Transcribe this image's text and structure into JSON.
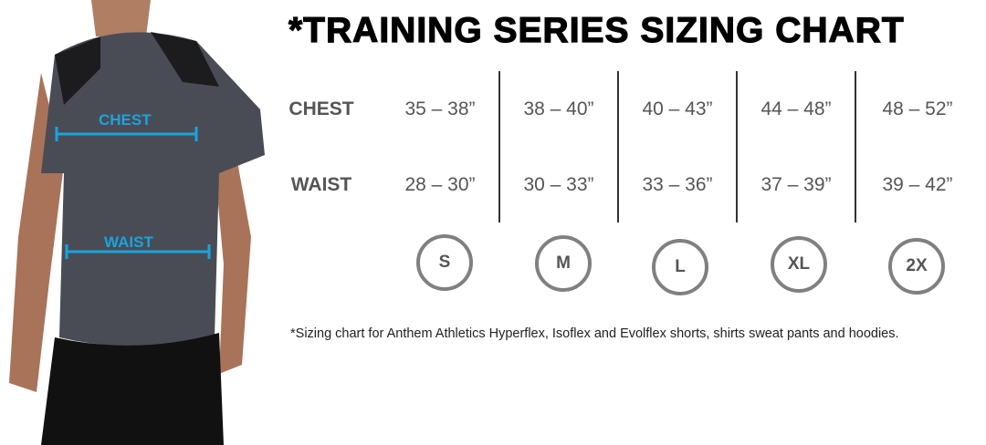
{
  "title": "*TRAINING SERIES SIZING CHART",
  "photo": {
    "chest_label": "CHEST",
    "waist_label": "WAIST",
    "measure_color": "#1aa3e0"
  },
  "rows": [
    {
      "label": "CHEST",
      "values": [
        "35 – 38”",
        "38 – 40”",
        "40 – 43”",
        "44 – 48”",
        "48 – 52”"
      ]
    },
    {
      "label": "WAIST",
      "values": [
        "28 – 30”",
        "30 – 33”",
        "33 – 36”",
        "37 – 39”",
        "39 – 42”"
      ]
    }
  ],
  "sizes": [
    "S",
    "M",
    "L",
    "XL",
    "2X"
  ],
  "footnote": "*Sizing chart for Anthem Athletics Hyperflex, Isoflex and Evolflex shorts, shirts sweat pants and hoodies."
}
